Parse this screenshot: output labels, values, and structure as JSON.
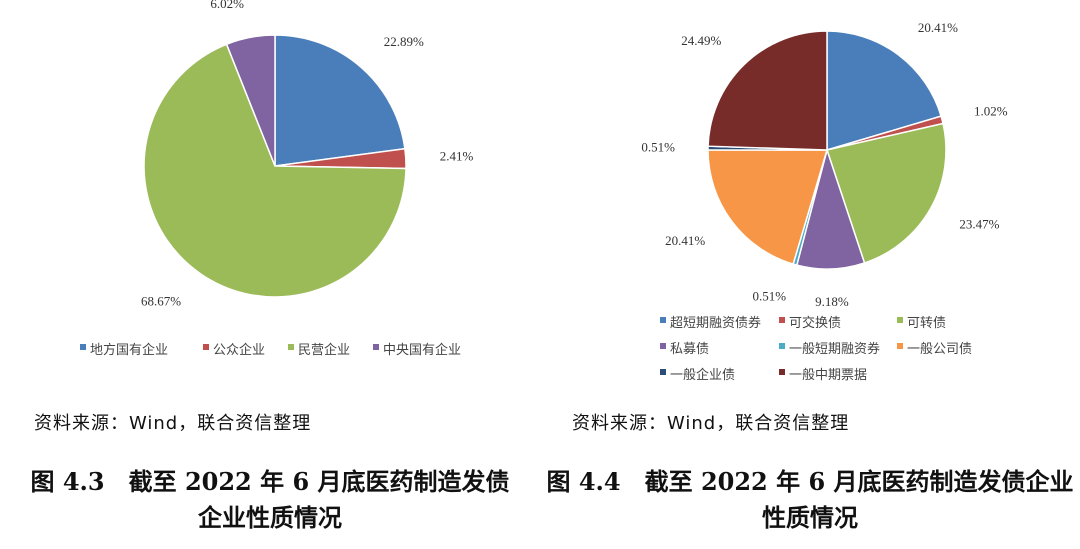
{
  "chart_data": [
    {
      "type": "pie",
      "categories": [
        "地方国有企业",
        "公众企业",
        "民营企业",
        "中央国有企业"
      ],
      "values": [
        22.89,
        2.41,
        68.67,
        6.02
      ],
      "labels": [
        "22.89%",
        "2.41%",
        "68.67%",
        "6.02%"
      ],
      "colors": [
        "#4a7ebb",
        "#c0504d",
        "#9bbb59",
        "#8064a2"
      ],
      "legend_position": "bottom"
    },
    {
      "type": "pie",
      "categories": [
        "超短期融资债券",
        "可交换债",
        "可转债",
        "私募债",
        "一般短期融资券",
        "一般公司债",
        "一般企业债",
        "一般中期票据"
      ],
      "values": [
        20.41,
        1.02,
        23.47,
        9.18,
        0.51,
        20.41,
        0.51,
        24.49
      ],
      "labels": [
        "20.41%",
        "1.02%",
        "23.47%",
        "9.18%",
        "0.51%",
        "20.41%",
        "0.51%",
        "24.49%"
      ],
      "colors": [
        "#4a7ebb",
        "#c0504d",
        "#9bbb59",
        "#8064a2",
        "#4bacc6",
        "#f79646",
        "#2c4d75",
        "#772c2a"
      ],
      "legend_position": "bottom"
    }
  ],
  "left": {
    "source": "资料来源：Wind，联合资信整理",
    "caption_line1": "图 4.3　截至 2022 年 6 月底医药制造发债",
    "caption_line2": "企业性质情况"
  },
  "right": {
    "source": "资料来源：Wind，联合资信整理",
    "caption_line1": "图 4.4　截至 2022 年 6 月底医药制造发债企业",
    "caption_line2": "性质情况"
  }
}
